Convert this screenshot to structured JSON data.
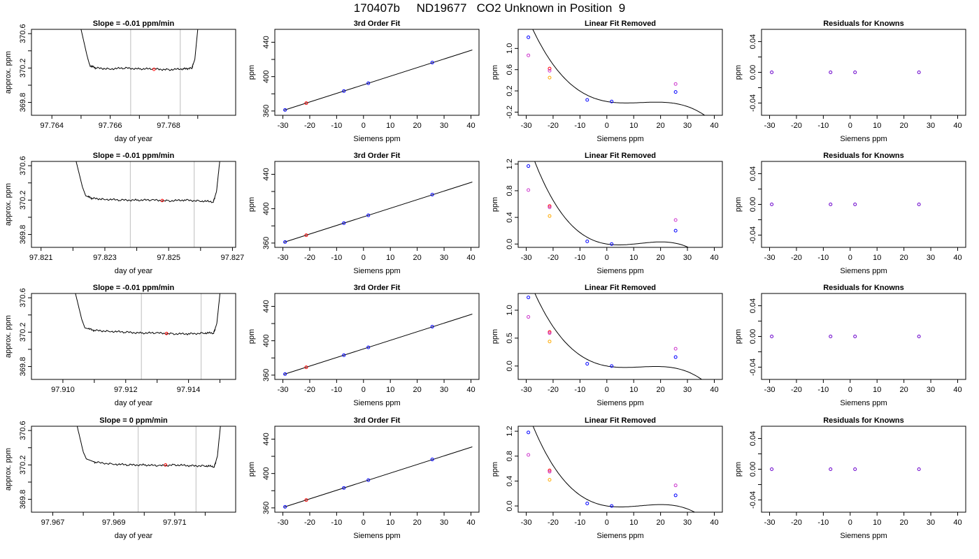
{
  "page": {
    "title": "170407b     ND19677   CO2 Unknown in Position  9"
  },
  "chart_data": [
    {
      "type": "line",
      "panel": "trace",
      "title": "Slope =  -0.01  ppm/min",
      "xlabel": "day of year",
      "ylabel": "approx. ppm",
      "xlim": [
        97.7633,
        97.7703
      ],
      "ylim": [
        369.65,
        370.65
      ],
      "xticks": [
        "97.764",
        "97.766",
        "97.768"
      ],
      "yticks": [
        "369.8",
        "370.2",
        "370.6"
      ],
      "x": [
        97.765,
        97.7652,
        97.7653,
        97.7655,
        97.766,
        97.7665,
        97.767,
        97.7675,
        97.768,
        97.7685,
        97.7688,
        97.7689,
        97.769
      ],
      "y": [
        370.65,
        370.35,
        370.23,
        370.2,
        370.19,
        370.2,
        370.19,
        370.19,
        370.18,
        370.19,
        370.2,
        370.3,
        370.65
      ],
      "vlines": [
        97.7667,
        97.7684
      ],
      "marker": {
        "x": 97.7675,
        "y": 370.185
      }
    },
    {
      "type": "scatter",
      "panel": "fit",
      "title": "3rd Order Fit",
      "xlabel": "Siemens ppm",
      "ylabel": "ppm",
      "xlim": [
        -33,
        43
      ],
      "ylim": [
        355,
        455
      ],
      "xticks": [
        "-30",
        "-20",
        "-10",
        "0",
        "10",
        "20",
        "30",
        "40"
      ],
      "yticks": [
        "360",
        "400",
        "440"
      ],
      "points_x": [
        -29.2,
        -21.3,
        -7.3,
        1.8,
        25.6
      ],
      "points_y": [
        361.2,
        369.1,
        383.2,
        392.3,
        416.4
      ],
      "point_colors": [
        "#0000ff",
        "#ff0000",
        "#0000ff",
        "#0000ff",
        "#0000ff"
      ],
      "line": {
        "x": [
          -29.5,
          40.5
        ],
        "y": [
          361.0,
          431.0
        ]
      }
    },
    {
      "type": "scatter",
      "panel": "linear-removed",
      "title": "Linear Fit Removed",
      "xlabel": "Siemens ppm",
      "ylabel": "ppm",
      "xlim": [
        -33,
        43
      ],
      "ylim": [
        -0.26,
        1.36
      ],
      "xticks": [
        "-30",
        "-20",
        "-10",
        "0",
        "10",
        "20",
        "30",
        "40"
      ],
      "yticks": [
        "-0.2",
        "0.2",
        "0.6",
        "1.0"
      ],
      "curve": {
        "a": 0.0,
        "b": -0.00888,
        "c": 0.000856,
        "d": -2.22e-05
      },
      "points_x": [
        -29.2,
        -29.2,
        -21.3,
        -21.3,
        -21.3,
        -7.3,
        1.8,
        25.6,
        25.6
      ],
      "points_y": [
        1.21,
        0.87,
        0.62,
        0.45,
        0.58,
        0.03,
        0.0,
        0.18,
        0.33
      ],
      "point_colors": [
        "#0000ff",
        "#cc33cc",
        "#ff0000",
        "#ffaa00",
        "#cc33cc",
        "#0000ff",
        "#0000ff",
        "#0000ff",
        "#cc33cc"
      ]
    },
    {
      "type": "scatter",
      "panel": "residuals",
      "title": "Residuals for Knowns",
      "xlabel": "Siemens ppm",
      "ylabel": "ppm",
      "xlim": [
        -33,
        43
      ],
      "ylim": [
        -0.056,
        0.056
      ],
      "xticks": [
        "-30",
        "-20",
        "-10",
        "0",
        "10",
        "20",
        "30",
        "40"
      ],
      "yticks": [
        "-0.04",
        "0.00",
        "0.04"
      ],
      "points_x": [
        -29.2,
        -7.3,
        1.8,
        25.6
      ],
      "points_y": [
        0,
        0,
        0,
        0
      ],
      "point_colors": [
        "#6a00cc",
        "#6a00cc",
        "#6a00cc",
        "#6a00cc"
      ]
    },
    {
      "type": "line",
      "panel": "trace",
      "title": "Slope =  -0.01  ppm/min",
      "xlabel": "day of year",
      "ylabel": "approx. ppm",
      "xlim": [
        97.8207,
        97.8271
      ],
      "ylim": [
        369.65,
        370.65
      ],
      "xticks": [
        "97.821",
        "97.823",
        "97.825",
        "97.827"
      ],
      "yticks": [
        "369.8",
        "370.2",
        "370.6"
      ],
      "x": [
        97.8221,
        97.8223,
        97.8224,
        97.8226,
        97.823,
        97.8235,
        97.824,
        97.8245,
        97.825,
        97.8255,
        97.826,
        97.8264,
        97.8265,
        97.8266
      ],
      "y": [
        370.65,
        370.35,
        370.25,
        370.22,
        370.21,
        370.2,
        370.2,
        370.2,
        370.19,
        370.2,
        370.19,
        370.18,
        370.3,
        370.65
      ],
      "vlines": [
        97.8238,
        97.8258
      ],
      "marker": {
        "x": 97.8248,
        "y": 370.195
      }
    },
    {
      "type": "scatter",
      "panel": "fit",
      "title": "3rd Order Fit",
      "xlabel": "Siemens ppm",
      "ylabel": "ppm",
      "xlim": [
        -33,
        43
      ],
      "ylim": [
        355,
        455
      ],
      "xticks": [
        "-30",
        "-20",
        "-10",
        "0",
        "10",
        "20",
        "30",
        "40"
      ],
      "yticks": [
        "360",
        "400",
        "440"
      ],
      "points_x": [
        -29.2,
        -21.3,
        -7.3,
        1.8,
        25.6
      ],
      "points_y": [
        361.2,
        369.1,
        383.2,
        392.3,
        416.4
      ],
      "point_colors": [
        "#0000ff",
        "#ff0000",
        "#0000ff",
        "#0000ff",
        "#0000ff"
      ],
      "line": {
        "x": [
          -29.5,
          40.5
        ],
        "y": [
          361.0,
          431.0
        ]
      }
    },
    {
      "type": "scatter",
      "panel": "linear-removed",
      "title": "Linear Fit Removed",
      "xlabel": "Siemens ppm",
      "ylabel": "ppm",
      "xlim": [
        -33,
        43
      ],
      "ylim": [
        -0.05,
        1.24
      ],
      "xticks": [
        "-30",
        "-20",
        "-10",
        "0",
        "10",
        "20",
        "30",
        "40"
      ],
      "yticks": [
        "0.0",
        "0.4",
        "0.8",
        "1.2"
      ],
      "curve": {
        "a": 0.0,
        "b": -0.0063,
        "c": 0.00086,
        "d": -2.33e-05
      },
      "points_x": [
        -29.2,
        -29.2,
        -21.3,
        -21.3,
        -21.3,
        -7.3,
        1.8,
        25.6,
        25.6
      ],
      "points_y": [
        1.17,
        0.81,
        0.57,
        0.42,
        0.55,
        0.04,
        0.0,
        0.2,
        0.36
      ],
      "point_colors": [
        "#0000ff",
        "#cc33cc",
        "#ff0000",
        "#ffaa00",
        "#cc33cc",
        "#0000ff",
        "#0000ff",
        "#0000ff",
        "#cc33cc"
      ]
    },
    {
      "type": "scatter",
      "panel": "residuals",
      "title": "Residuals for Knowns",
      "xlabel": "Siemens ppm",
      "ylabel": "ppm",
      "xlim": [
        -33,
        43
      ],
      "ylim": [
        -0.056,
        0.056
      ],
      "xticks": [
        "-30",
        "-20",
        "-10",
        "0",
        "10",
        "20",
        "30",
        "40"
      ],
      "yticks": [
        "-0.04",
        "0.00",
        "0.04"
      ],
      "points_x": [
        -29.2,
        -7.3,
        1.8,
        25.6
      ],
      "points_y": [
        0,
        0,
        0,
        0
      ],
      "point_colors": [
        "#6a00cc",
        "#6a00cc",
        "#6a00cc",
        "#6a00cc"
      ]
    },
    {
      "type": "line",
      "panel": "trace",
      "title": "Slope =  -0.01  ppm/min",
      "xlabel": "day of year",
      "ylabel": "approx. ppm",
      "xlim": [
        97.909,
        97.9155
      ],
      "ylim": [
        369.65,
        370.65
      ],
      "xticks": [
        "97.910",
        "97.912",
        "97.914"
      ],
      "yticks": [
        "369.8",
        "370.2",
        "370.6"
      ],
      "x": [
        97.9104,
        97.9106,
        97.9107,
        97.911,
        97.9115,
        97.912,
        97.9125,
        97.913,
        97.9135,
        97.914,
        97.9145,
        97.9148,
        97.9149,
        97.915
      ],
      "y": [
        370.65,
        370.35,
        370.25,
        370.22,
        370.21,
        370.2,
        370.19,
        370.19,
        370.18,
        370.18,
        370.19,
        370.19,
        370.3,
        370.65
      ],
      "vlines": [
        97.9125,
        97.9144
      ],
      "marker": {
        "x": 97.9133,
        "y": 370.185
      }
    },
    {
      "type": "scatter",
      "panel": "fit",
      "title": "3rd Order Fit",
      "xlabel": "Siemens ppm",
      "ylabel": "ppm",
      "xlim": [
        -33,
        43
      ],
      "ylim": [
        355,
        455
      ],
      "xticks": [
        "-30",
        "-20",
        "-10",
        "0",
        "10",
        "20",
        "30",
        "40"
      ],
      "yticks": [
        "360",
        "400",
        "440"
      ],
      "points_x": [
        -29.2,
        -21.3,
        -7.3,
        1.8,
        25.6
      ],
      "points_y": [
        361.2,
        369.1,
        383.2,
        392.3,
        416.4
      ],
      "point_colors": [
        "#0000ff",
        "#ff0000",
        "#0000ff",
        "#0000ff",
        "#0000ff"
      ],
      "line": {
        "x": [
          -29.5,
          40.5
        ],
        "y": [
          361.0,
          431.0
        ]
      }
    },
    {
      "type": "scatter",
      "panel": "linear-removed",
      "title": "Linear Fit Removed",
      "xlabel": "Siemens ppm",
      "ylabel": "ppm",
      "xlim": [
        -33,
        43
      ],
      "ylim": [
        -0.24,
        1.3
      ],
      "xticks": [
        "-30",
        "-20",
        "-10",
        "0",
        "10",
        "20",
        "30",
        "40"
      ],
      "yticks": [
        "0.0",
        "0.5",
        "1.0"
      ],
      "curve": {
        "a": 0.0,
        "b": -0.0086,
        "c": 0.00087,
        "d": -2.32e-05
      },
      "points_x": [
        -29.2,
        -29.2,
        -21.3,
        -21.3,
        -21.3,
        -7.3,
        1.8,
        25.6,
        25.6
      ],
      "points_y": [
        1.23,
        0.88,
        0.61,
        0.44,
        0.59,
        0.04,
        0.0,
        0.16,
        0.31
      ],
      "point_colors": [
        "#0000ff",
        "#cc33cc",
        "#ff0000",
        "#ffaa00",
        "#cc33cc",
        "#0000ff",
        "#0000ff",
        "#0000ff",
        "#cc33cc"
      ]
    },
    {
      "type": "scatter",
      "panel": "residuals",
      "title": "Residuals for Knowns",
      "xlabel": "Siemens ppm",
      "ylabel": "ppm",
      "xlim": [
        -33,
        43
      ],
      "ylim": [
        -0.056,
        0.056
      ],
      "xticks": [
        "-30",
        "-20",
        "-10",
        "0",
        "10",
        "20",
        "30",
        "40"
      ],
      "yticks": [
        "-0.04",
        "0.00",
        "0.04"
      ],
      "points_x": [
        -29.2,
        -7.3,
        1.8,
        25.6
      ],
      "points_y": [
        0,
        0,
        0,
        0
      ],
      "point_colors": [
        "#6a00cc",
        "#6a00cc",
        "#6a00cc",
        "#6a00cc"
      ]
    },
    {
      "type": "line",
      "panel": "trace",
      "title": "Slope =  0  ppm/min",
      "xlabel": "day of year",
      "ylabel": "approx. ppm",
      "xlim": [
        97.9663,
        97.973
      ],
      "ylim": [
        369.65,
        370.65
      ],
      "xticks": [
        "97.967",
        "97.969",
        "97.971"
      ],
      "yticks": [
        "369.8",
        "370.2",
        "370.6"
      ],
      "x": [
        97.9678,
        97.968,
        97.9681,
        97.9684,
        97.969,
        97.9695,
        97.97,
        97.9705,
        97.971,
        97.9715,
        97.972,
        97.9723,
        97.9724,
        97.9725
      ],
      "y": [
        370.65,
        370.35,
        370.27,
        370.23,
        370.21,
        370.2,
        370.2,
        370.19,
        370.2,
        370.19,
        370.19,
        370.18,
        370.3,
        370.65
      ],
      "vlines": [
        97.9698,
        97.9717
      ],
      "marker": {
        "x": 97.9707,
        "y": 370.2
      }
    },
    {
      "type": "scatter",
      "panel": "fit",
      "title": "3rd Order Fit",
      "xlabel": "Siemens ppm",
      "ylabel": "ppm",
      "xlim": [
        -33,
        43
      ],
      "ylim": [
        355,
        455
      ],
      "xticks": [
        "-30",
        "-20",
        "-10",
        "0",
        "10",
        "20",
        "30",
        "40"
      ],
      "yticks": [
        "360",
        "400",
        "440"
      ],
      "points_x": [
        -29.2,
        -21.3,
        -7.3,
        1.8,
        25.6
      ],
      "points_y": [
        361.2,
        369.1,
        383.2,
        392.3,
        416.4
      ],
      "point_colors": [
        "#0000ff",
        "#ff0000",
        "#0000ff",
        "#0000ff",
        "#0000ff"
      ],
      "line": {
        "x": [
          -29.5,
          40.5
        ],
        "y": [
          361.0,
          431.0
        ]
      }
    },
    {
      "type": "scatter",
      "panel": "linear-removed",
      "title": "Linear Fit Removed",
      "xlabel": "Siemens ppm",
      "ylabel": "ppm",
      "xlim": [
        -33,
        43
      ],
      "ylim": [
        -0.1,
        1.28
      ],
      "xticks": [
        "-30",
        "-20",
        "-10",
        "0",
        "10",
        "20",
        "30",
        "40"
      ],
      "yticks": [
        "0.0",
        "0.4",
        "0.8",
        "1.2"
      ],
      "curve": {
        "a": 0.0,
        "b": -0.0068,
        "c": 0.00084,
        "d": -2.22e-05
      },
      "points_x": [
        -29.2,
        -29.2,
        -21.3,
        -21.3,
        -21.3,
        -7.3,
        1.8,
        25.6,
        25.6
      ],
      "points_y": [
        1.18,
        0.82,
        0.57,
        0.42,
        0.55,
        0.04,
        0.0,
        0.17,
        0.33
      ],
      "point_colors": [
        "#0000ff",
        "#cc33cc",
        "#ff0000",
        "#ffaa00",
        "#cc33cc",
        "#0000ff",
        "#0000ff",
        "#0000ff",
        "#cc33cc"
      ]
    },
    {
      "type": "scatter",
      "panel": "residuals",
      "title": "Residuals for Knowns",
      "xlabel": "Siemens ppm",
      "ylabel": "ppm",
      "xlim": [
        -33,
        43
      ],
      "ylim": [
        -0.056,
        0.056
      ],
      "xticks": [
        "-30",
        "-20",
        "-10",
        "0",
        "10",
        "20",
        "30",
        "40"
      ],
      "yticks": [
        "-0.04",
        "0.00",
        "0.04"
      ],
      "points_x": [
        -29.2,
        -7.3,
        1.8,
        25.6
      ],
      "points_y": [
        0,
        0,
        0,
        0
      ],
      "point_colors": [
        "#6a00cc",
        "#6a00cc",
        "#6a00cc",
        "#6a00cc"
      ]
    }
  ]
}
